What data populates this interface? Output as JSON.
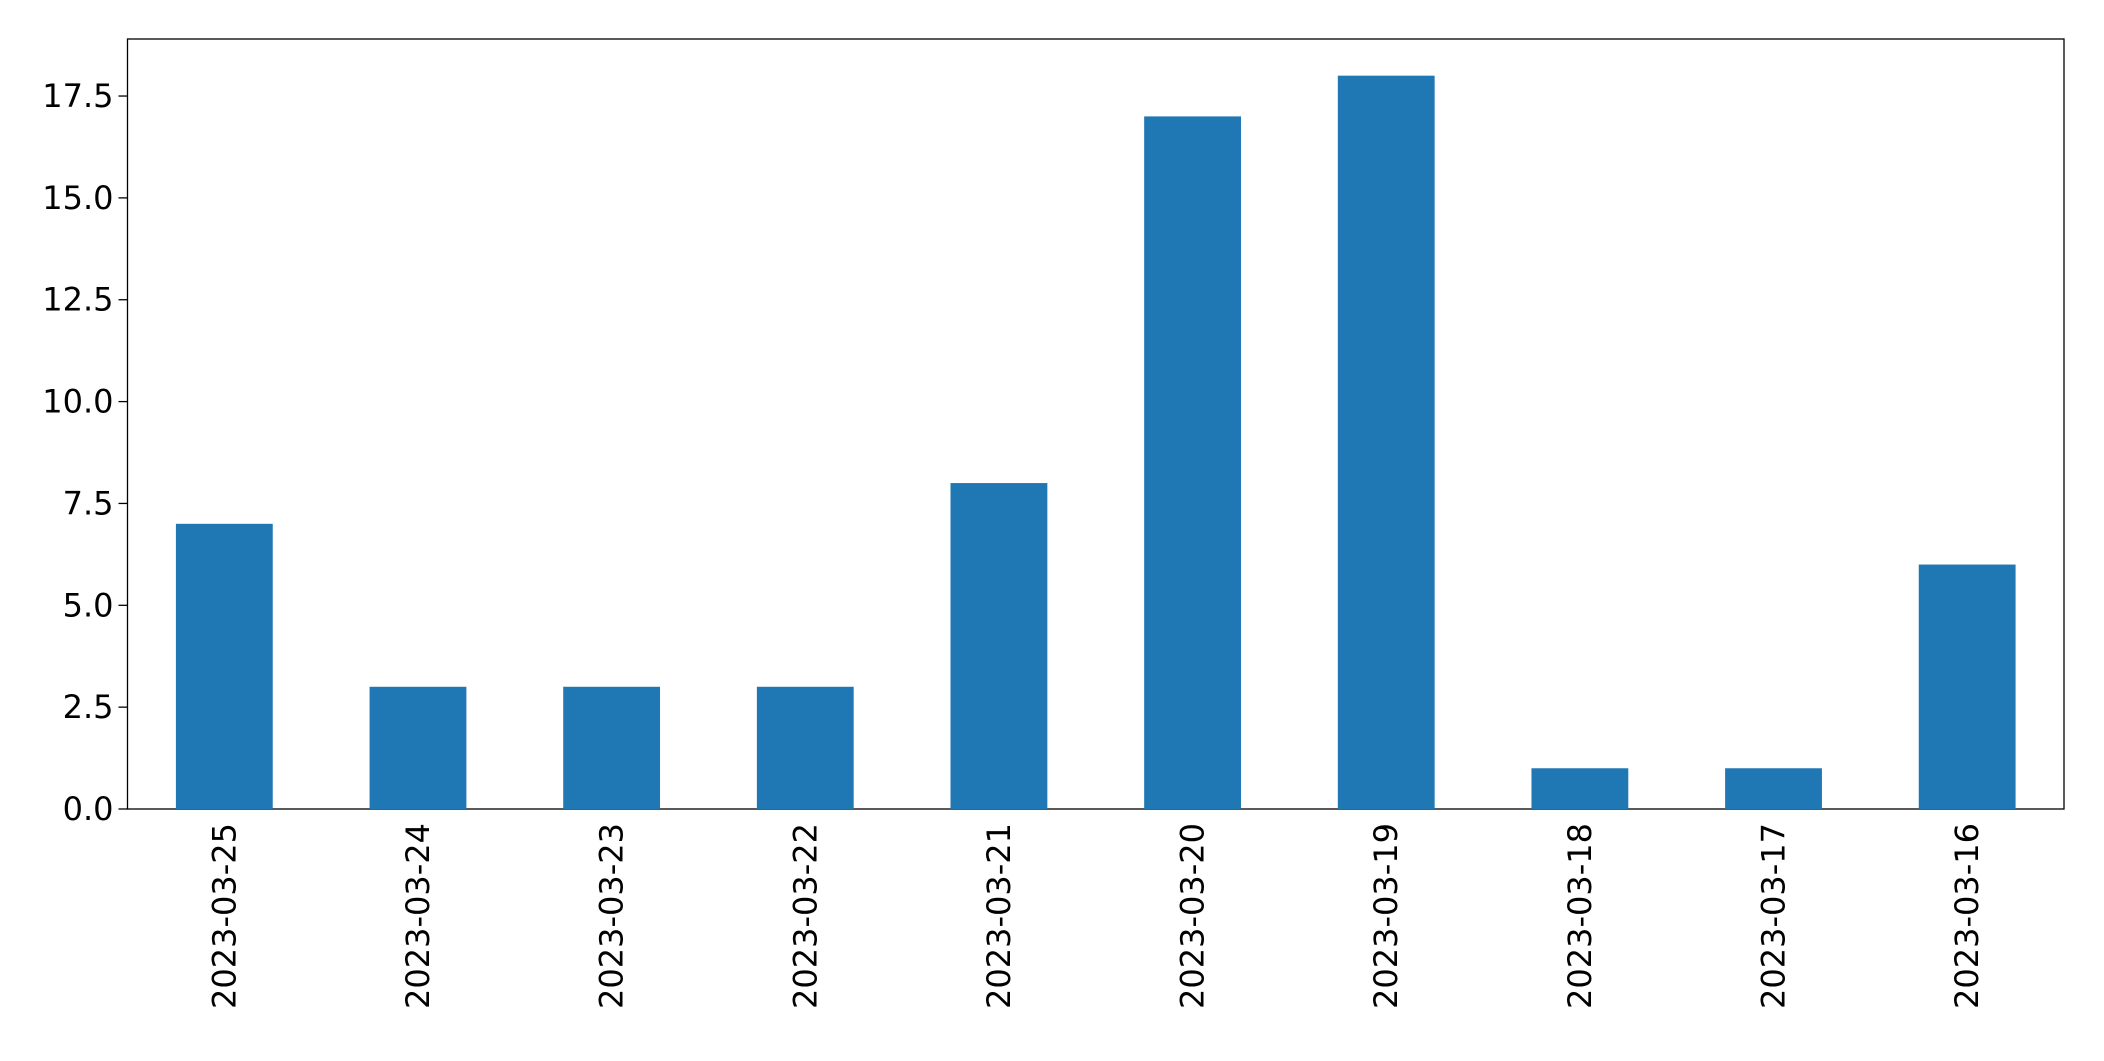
{
  "chart_data": {
    "type": "bar",
    "categories": [
      "2023-03-25",
      "2023-03-24",
      "2023-03-23",
      "2023-03-22",
      "2023-03-21",
      "2023-03-20",
      "2023-03-19",
      "2023-03-18",
      "2023-03-17",
      "2023-03-16"
    ],
    "values": [
      7,
      3,
      3,
      3,
      8,
      17,
      18,
      1,
      1,
      6
    ],
    "color": "#1f77b4",
    "ylim": [
      0,
      18.9
    ],
    "yticks": [
      {
        "value": 0,
        "label": "0.0"
      },
      2.5,
      {
        "value": 5,
        "label": "5.0"
      },
      7.5,
      {
        "value": 10,
        "label": "10.0"
      },
      12.5,
      {
        "value": 15,
        "label": "15.0"
      },
      17.5
    ],
    "grid": false
  }
}
